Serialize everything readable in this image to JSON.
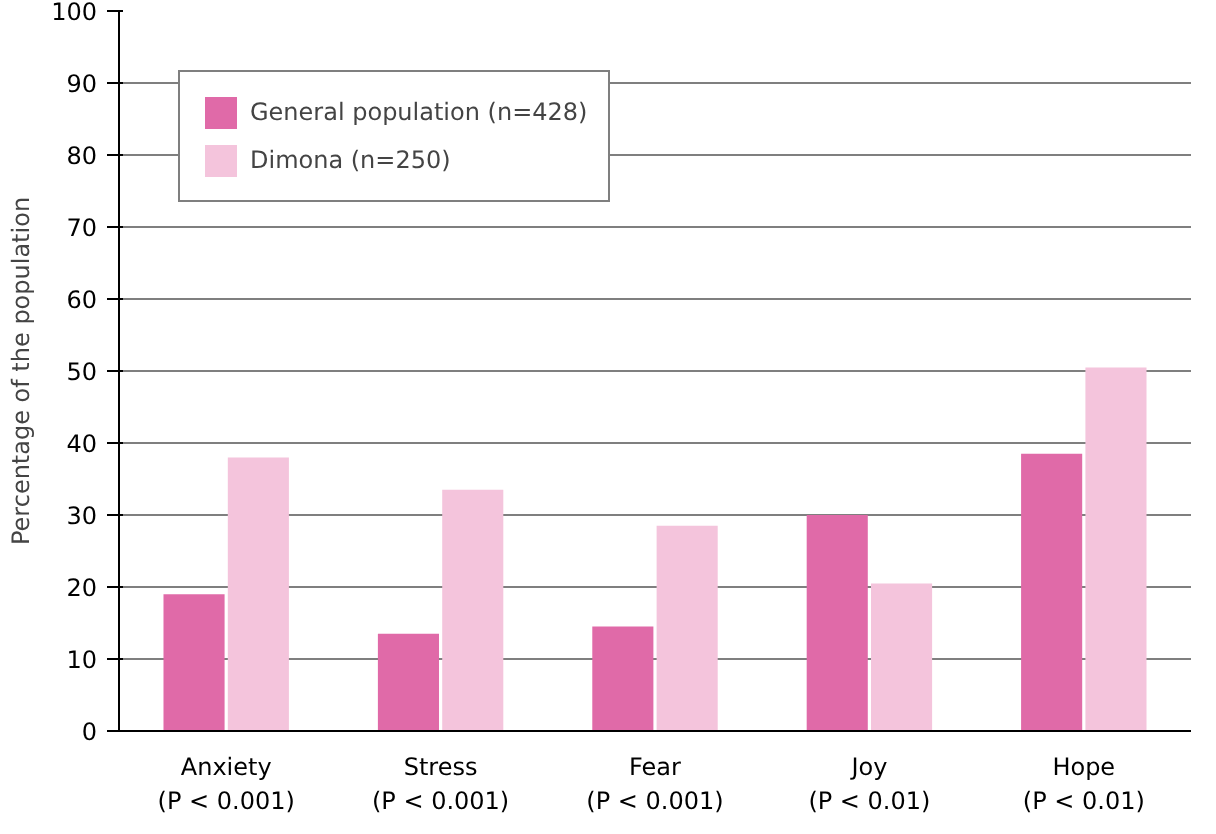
{
  "chart_data": {
    "type": "bar",
    "ylabel": "Percentage of the population",
    "categories": [
      "Anxiety\n(P < 0.001)",
      "Stress\n(P < 0.001)",
      "Fear\n(P < 0.001)",
      "Joy\n(P < 0.01)",
      "Hope\n(P < 0.01)"
    ],
    "series": [
      {
        "name": "General population (n=428)",
        "color": "#e06aa8",
        "values": [
          19,
          13.5,
          14.5,
          30,
          38.5
        ]
      },
      {
        "name": "Dimona (n=250)",
        "color": "#f4c4dc",
        "values": [
          38,
          33.5,
          28.5,
          20.5,
          50.5
        ]
      }
    ],
    "ylim": [
      0,
      100
    ],
    "yticks": [
      0,
      10,
      20,
      30,
      40,
      50,
      60,
      70,
      80,
      90,
      100
    ],
    "grid": "y",
    "legend": "top left"
  }
}
